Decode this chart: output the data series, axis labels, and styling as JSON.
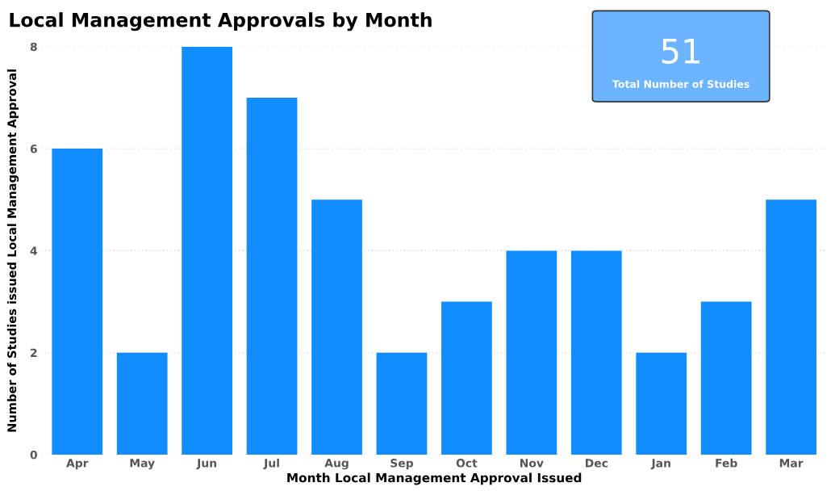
{
  "chart_data": {
    "type": "bar",
    "title": "Local Management Approvals by Month",
    "xlabel": "Month Local Management Approval Issued",
    "ylabel": "Number of Studies issued Local Management Approval",
    "categories": [
      "Apr",
      "May",
      "Jun",
      "Jul",
      "Aug",
      "Sep",
      "Oct",
      "Nov",
      "Dec",
      "Jan",
      "Feb",
      "Mar"
    ],
    "values": [
      6,
      2,
      8,
      7,
      5,
      2,
      3,
      4,
      4,
      2,
      3,
      5
    ],
    "color": "#118dff",
    "ylim": [
      0,
      8
    ],
    "yticks": [
      0,
      2,
      4,
      6,
      8
    ],
    "grid": "y",
    "annotations": [
      "51",
      "Total Number of Studies"
    ]
  }
}
